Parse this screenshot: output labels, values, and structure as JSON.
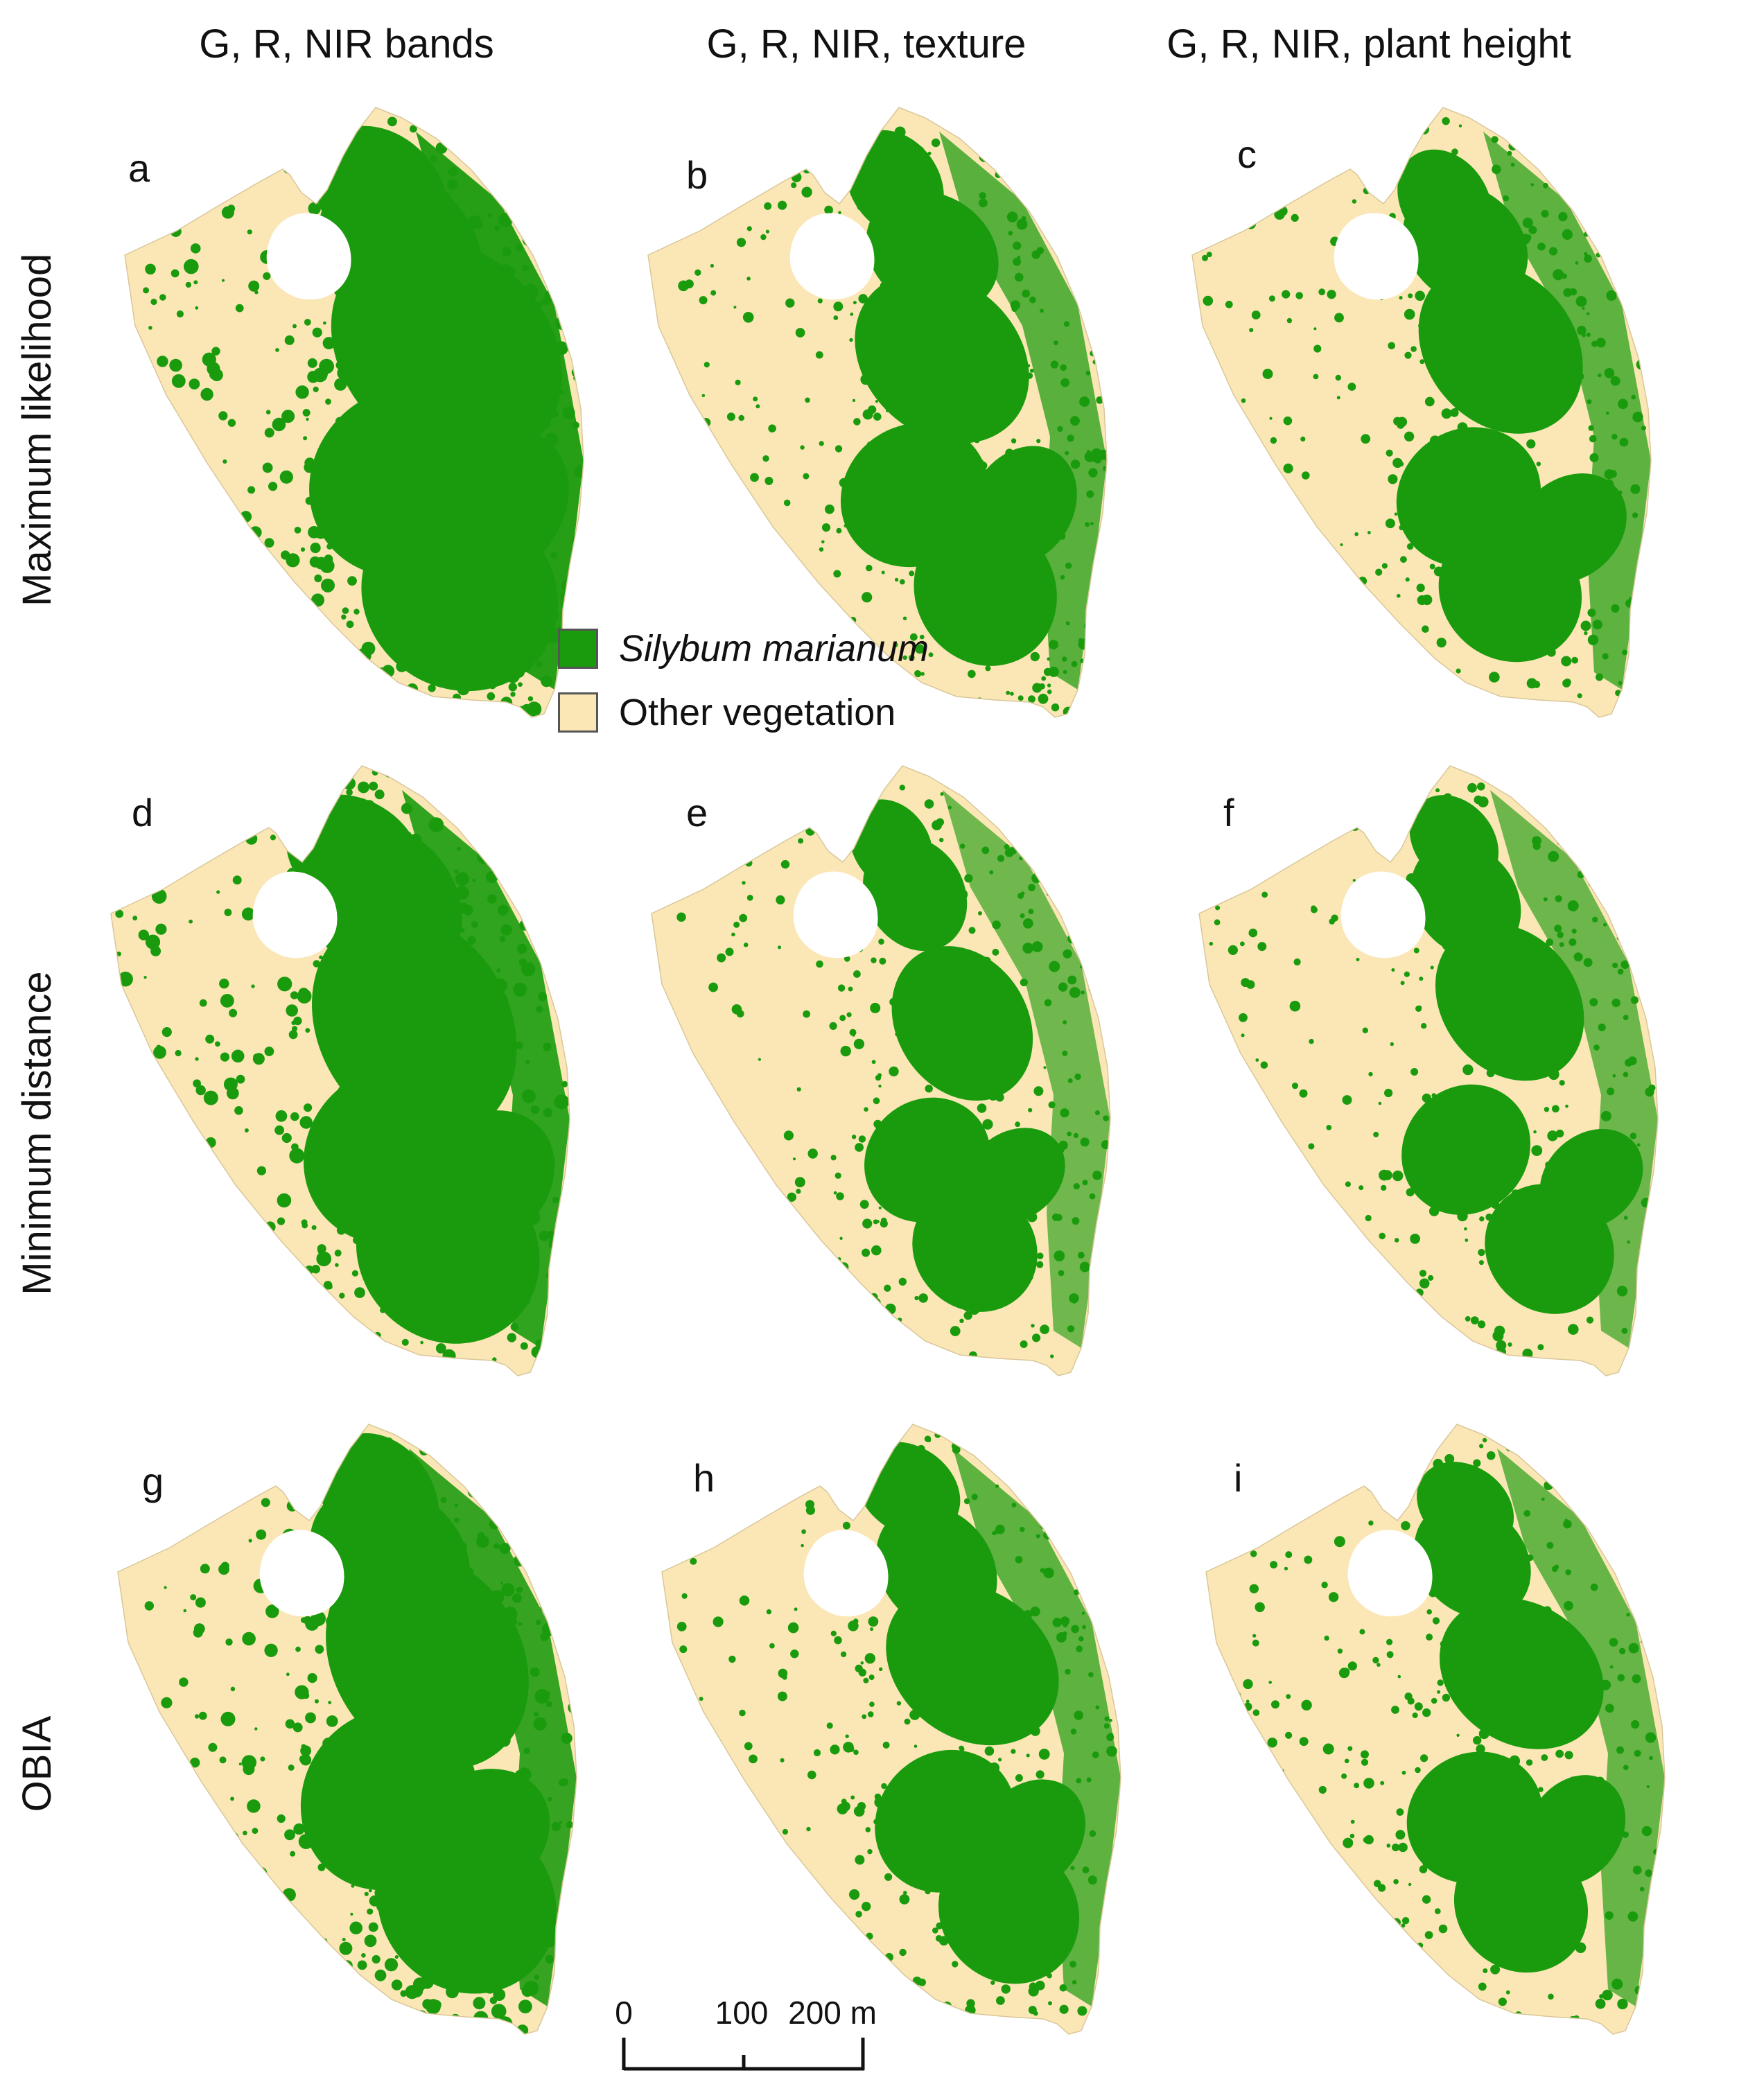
{
  "columns": [
    {
      "label": "G, R, NIR bands"
    },
    {
      "label": "G, R, NIR, texture"
    },
    {
      "label": "G, R, NIR, plant height"
    }
  ],
  "rows": [
    {
      "label": "Maximum likelihood"
    },
    {
      "label": "Minimum distance"
    },
    {
      "label": "OBIA"
    }
  ],
  "panels": [
    {
      "letter": "a",
      "coverage": 0.55
    },
    {
      "letter": "b",
      "coverage": 0.32
    },
    {
      "letter": "c",
      "coverage": 0.3
    },
    {
      "letter": "d",
      "coverage": 0.5
    },
    {
      "letter": "e",
      "coverage": 0.22
    },
    {
      "letter": "f",
      "coverage": 0.24
    },
    {
      "letter": "g",
      "coverage": 0.48
    },
    {
      "letter": "h",
      "coverage": 0.3
    },
    {
      "letter": "i",
      "coverage": 0.26
    }
  ],
  "legend": {
    "items": [
      {
        "label": "Silybum marianum",
        "color": "#1a9b0e",
        "italic": true
      },
      {
        "label": "Other vegetation",
        "color": "#fbe6b6",
        "italic": false
      }
    ]
  },
  "scalebar": {
    "ticks": [
      "0",
      "100",
      "200 m"
    ]
  },
  "colors": {
    "silybum": "#1a9b0e",
    "other": "#fbe6b6",
    "outline": "#555555"
  }
}
